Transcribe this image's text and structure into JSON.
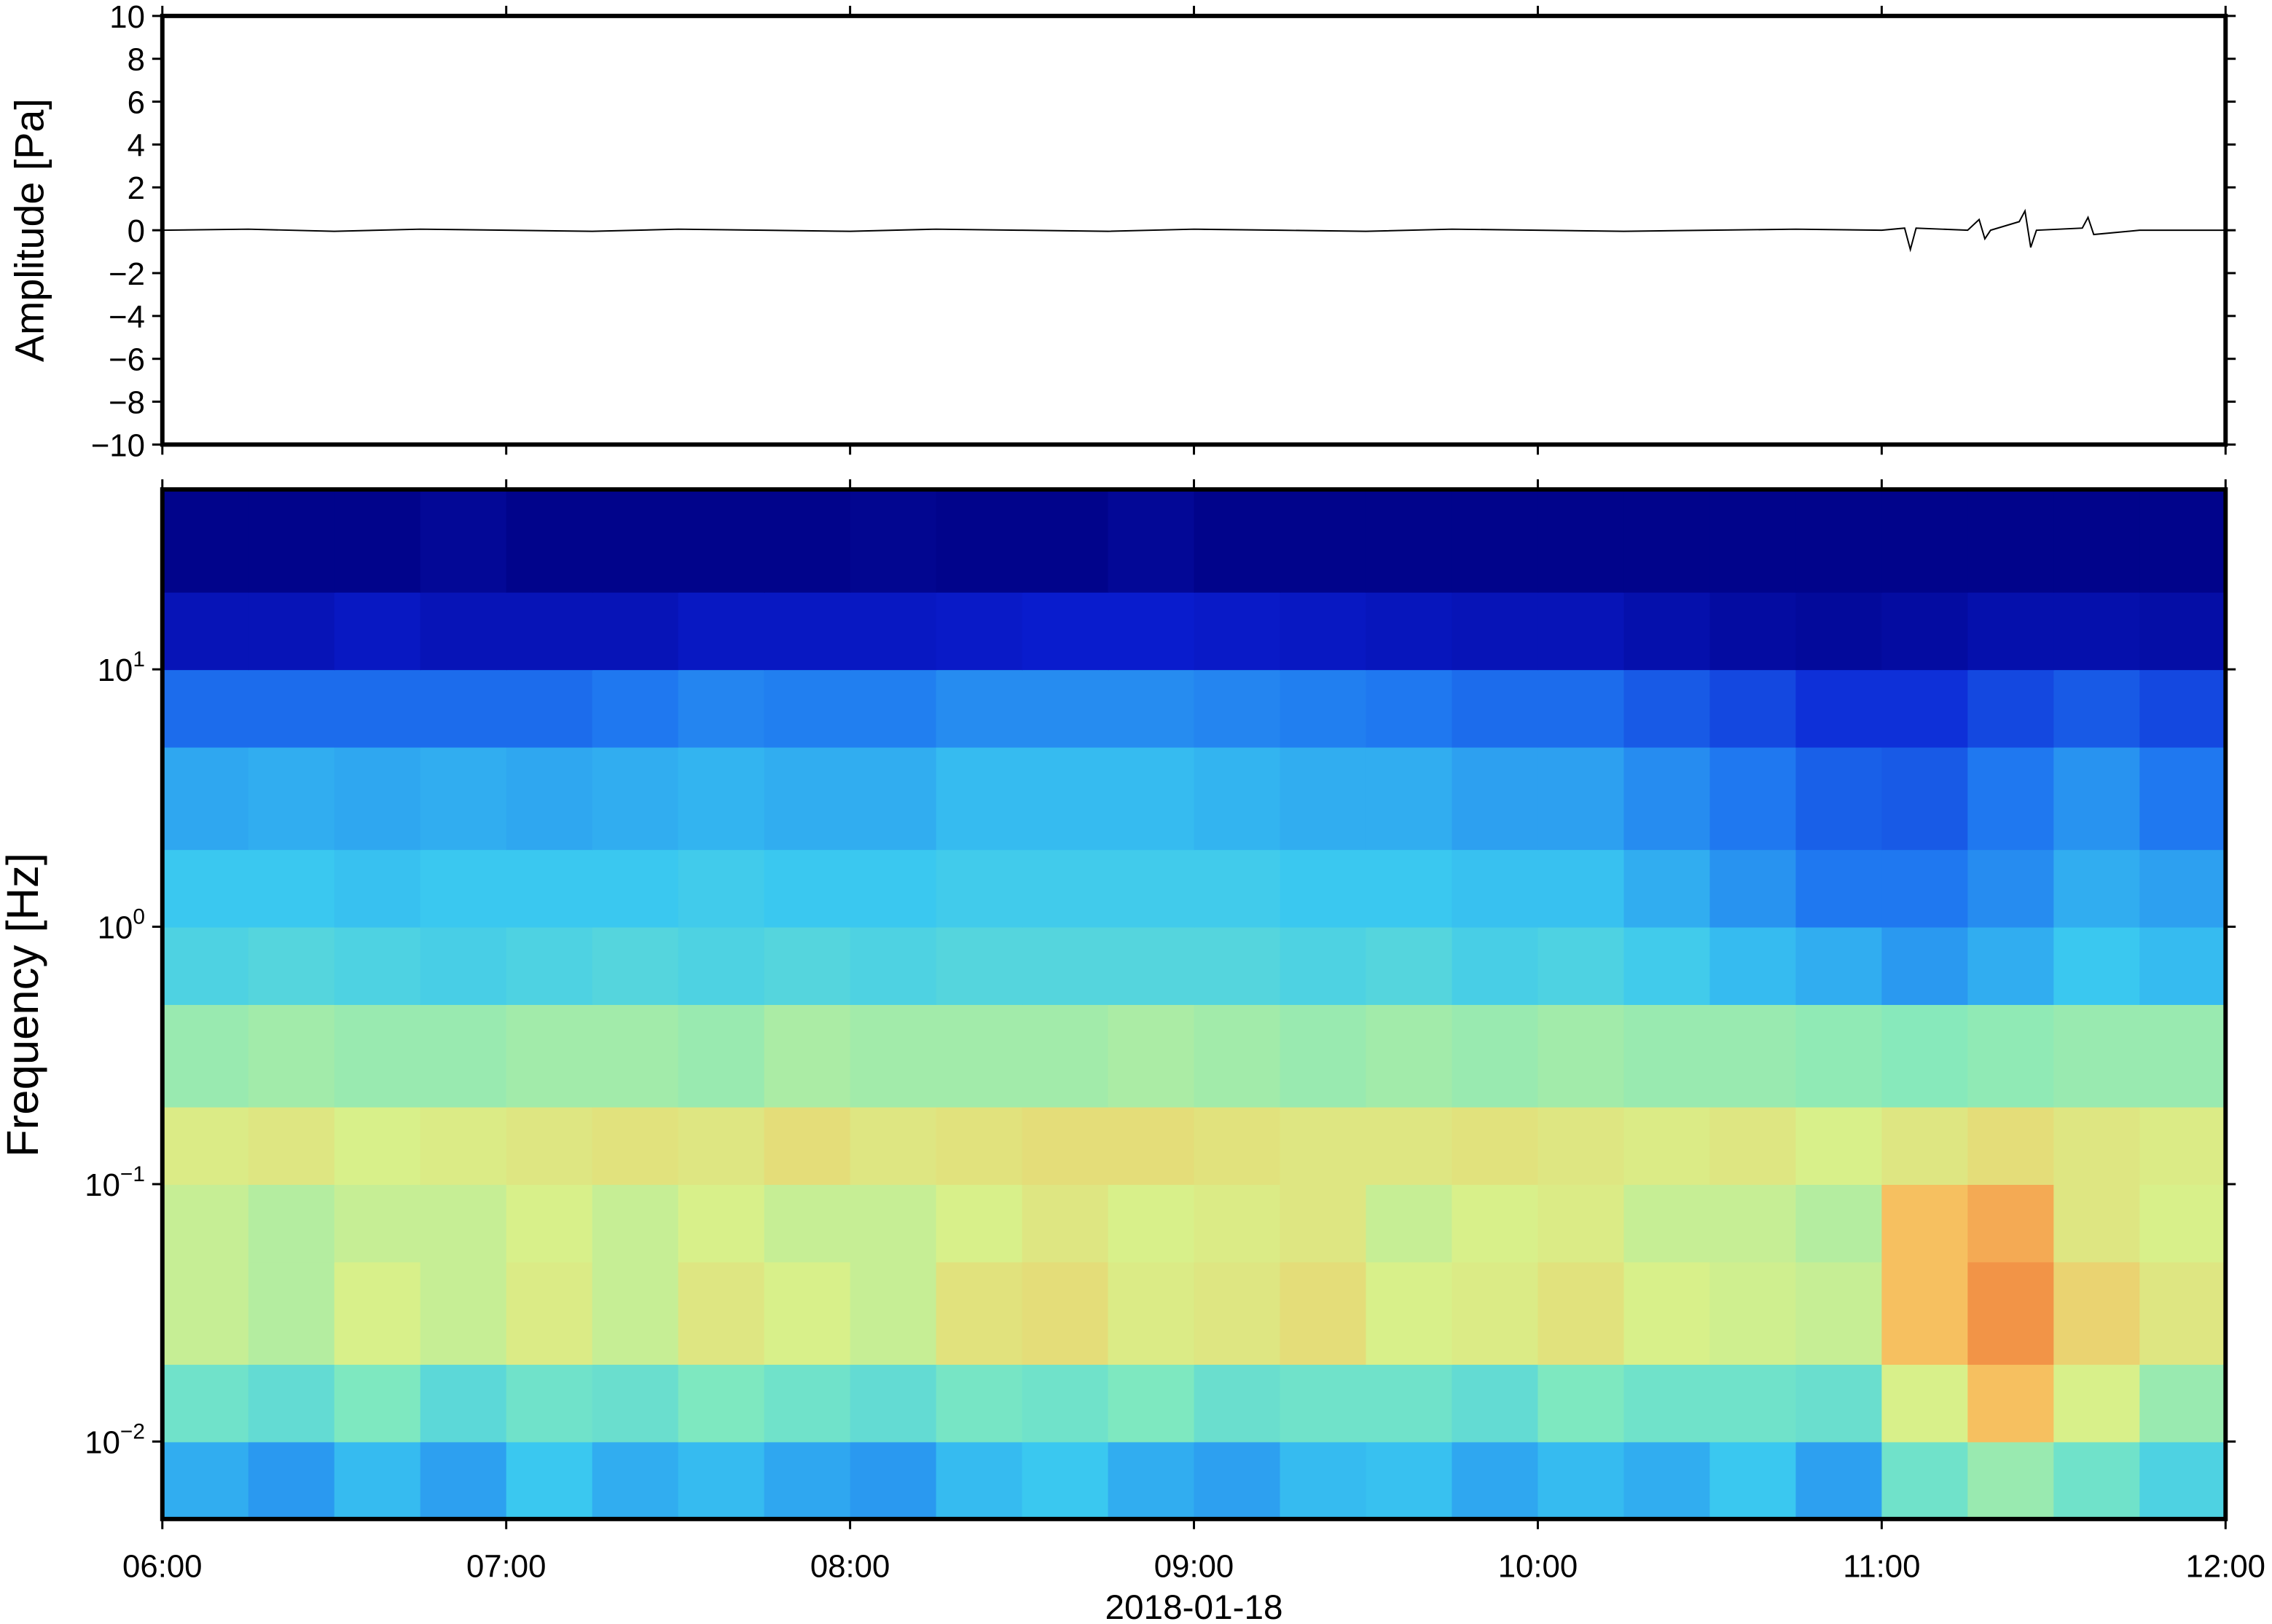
{
  "chart_data": [
    {
      "type": "line",
      "ylabel": "Amplitude [Pa]",
      "color": "#000000",
      "xlim": [
        360,
        720
      ],
      "xticks": [
        {
          "value": 360,
          "label": "06:00"
        },
        {
          "value": 420,
          "label": "07:00"
        },
        {
          "value": 480,
          "label": "08:00"
        },
        {
          "value": 540,
          "label": "09:00"
        },
        {
          "value": 600,
          "label": "10:00"
        },
        {
          "value": 660,
          "label": "11:00"
        },
        {
          "value": 720,
          "label": "12:00"
        }
      ],
      "ylim": [
        -10,
        10
      ],
      "yticks": [
        {
          "value": -10,
          "label": "−10"
        },
        {
          "value": -8,
          "label": "−8"
        },
        {
          "value": -6,
          "label": "−6"
        },
        {
          "value": -4,
          "label": "−4"
        },
        {
          "value": -2,
          "label": "−2"
        },
        0,
        2,
        4,
        6,
        8,
        10
      ],
      "x": [
        360,
        375,
        390,
        405,
        420,
        435,
        450,
        465,
        480,
        495,
        510,
        525,
        540,
        555,
        570,
        585,
        600,
        615,
        630,
        645,
        660,
        664,
        665,
        666,
        675,
        677,
        678,
        679,
        684,
        685,
        686,
        687,
        695,
        696,
        697,
        705,
        720
      ],
      "values": [
        0,
        0.05,
        -0.05,
        0.05,
        0,
        -0.05,
        0.05,
        0,
        -0.05,
        0.05,
        0,
        -0.05,
        0.05,
        0,
        -0.05,
        0.05,
        0,
        -0.05,
        0,
        0.05,
        0,
        0.1,
        -0.9,
        0.1,
        0,
        0.5,
        -0.4,
        0,
        0.4,
        0.9,
        -0.8,
        0,
        0.1,
        0.6,
        -0.2,
        0,
        0
      ]
    },
    {
      "type": "heatmap",
      "ylabel": "Frequency [Hz]",
      "xlabel": "2018-01-18",
      "log_y": true,
      "xlim": [
        360,
        720
      ],
      "xticks": [
        {
          "value": 360,
          "label": "06:00"
        },
        {
          "value": 420,
          "label": "07:00"
        },
        {
          "value": 480,
          "label": "08:00"
        },
        {
          "value": 540,
          "label": "09:00"
        },
        {
          "value": 600,
          "label": "10:00"
        },
        {
          "value": 660,
          "label": "11:00"
        },
        {
          "value": 720,
          "label": "12:00"
        }
      ],
      "ylim": [
        0.005,
        50
      ],
      "yticks": [
        {
          "value": 0.01,
          "label": "10",
          "exponent": "−2"
        },
        {
          "value": 0.1,
          "label": "10",
          "exponent": "−1"
        },
        {
          "value": 1,
          "label": "10",
          "exponent": "0"
        },
        {
          "value": 10,
          "label": "10",
          "exponent": "1"
        }
      ],
      "x_edges": [
        360,
        375,
        390,
        405,
        420,
        435,
        450,
        465,
        480,
        495,
        510,
        525,
        540,
        555,
        570,
        585,
        600,
        615,
        630,
        645,
        660,
        675,
        690,
        705,
        720
      ],
      "y_edges": [
        0.005,
        0.01,
        0.02,
        0.05,
        0.1,
        0.2,
        0.5,
        1,
        2,
        5,
        10,
        20,
        50
      ],
      "colormap": [
        "#000080",
        "#0a1ed2",
        "#1f78f0",
        "#3ac8f0",
        "#7ee8c0",
        "#d8f08a",
        "#f6c060",
        "#f07838",
        "#c02010"
      ],
      "colormap_stops": [
        0,
        0.15,
        0.3,
        0.42,
        0.52,
        0.62,
        0.72,
        0.85,
        1
      ],
      "values": [
        [
          0.38,
          0.35,
          0.4,
          0.36,
          0.42,
          0.38,
          0.4,
          0.37,
          0.35,
          0.4,
          0.42,
          0.38,
          0.36,
          0.4,
          0.41,
          0.37,
          0.4,
          0.38,
          0.42,
          0.36,
          0.5,
          0.55,
          0.5,
          0.45
        ],
        [
          0.5,
          0.48,
          0.52,
          0.47,
          0.5,
          0.49,
          0.52,
          0.5,
          0.48,
          0.51,
          0.5,
          0.52,
          0.49,
          0.5,
          0.5,
          0.48,
          0.52,
          0.5,
          0.5,
          0.49,
          0.62,
          0.72,
          0.62,
          0.55
        ],
        [
          0.6,
          0.58,
          0.62,
          0.6,
          0.63,
          0.6,
          0.64,
          0.62,
          0.6,
          0.65,
          0.66,
          0.63,
          0.64,
          0.66,
          0.62,
          0.63,
          0.65,
          0.62,
          0.61,
          0.6,
          0.72,
          0.8,
          0.68,
          0.64
        ],
        [
          0.6,
          0.58,
          0.6,
          0.6,
          0.62,
          0.6,
          0.62,
          0.6,
          0.6,
          0.62,
          0.64,
          0.62,
          0.63,
          0.64,
          0.6,
          0.62,
          0.63,
          0.6,
          0.6,
          0.58,
          0.72,
          0.76,
          0.64,
          0.62
        ],
        [
          0.63,
          0.64,
          0.62,
          0.63,
          0.64,
          0.65,
          0.64,
          0.66,
          0.64,
          0.65,
          0.66,
          0.66,
          0.65,
          0.64,
          0.64,
          0.65,
          0.64,
          0.63,
          0.64,
          0.62,
          0.64,
          0.66,
          0.64,
          0.63
        ],
        [
          0.55,
          0.56,
          0.55,
          0.55,
          0.56,
          0.56,
          0.55,
          0.57,
          0.56,
          0.56,
          0.56,
          0.57,
          0.56,
          0.55,
          0.56,
          0.55,
          0.56,
          0.55,
          0.55,
          0.54,
          0.53,
          0.54,
          0.55,
          0.55
        ],
        [
          0.45,
          0.46,
          0.45,
          0.44,
          0.45,
          0.46,
          0.45,
          0.46,
          0.45,
          0.46,
          0.46,
          0.46,
          0.46,
          0.45,
          0.46,
          0.44,
          0.45,
          0.43,
          0.4,
          0.38,
          0.35,
          0.38,
          0.42,
          0.4
        ],
        [
          0.42,
          0.42,
          0.41,
          0.42,
          0.42,
          0.42,
          0.43,
          0.42,
          0.42,
          0.43,
          0.43,
          0.43,
          0.43,
          0.42,
          0.42,
          0.41,
          0.41,
          0.38,
          0.34,
          0.3,
          0.3,
          0.33,
          0.38,
          0.36
        ],
        [
          0.37,
          0.38,
          0.37,
          0.38,
          0.37,
          0.38,
          0.39,
          0.38,
          0.38,
          0.4,
          0.4,
          0.4,
          0.39,
          0.38,
          0.38,
          0.36,
          0.36,
          0.33,
          0.3,
          0.26,
          0.25,
          0.3,
          0.34,
          0.3
        ],
        [
          0.28,
          0.28,
          0.28,
          0.28,
          0.28,
          0.3,
          0.32,
          0.31,
          0.31,
          0.33,
          0.33,
          0.33,
          0.32,
          0.31,
          0.3,
          0.28,
          0.28,
          0.25,
          0.22,
          0.18,
          0.18,
          0.22,
          0.25,
          0.22
        ],
        [
          0.1,
          0.1,
          0.12,
          0.1,
          0.1,
          0.1,
          0.12,
          0.12,
          0.12,
          0.13,
          0.14,
          0.14,
          0.13,
          0.12,
          0.11,
          0.1,
          0.1,
          0.08,
          0.06,
          0.05,
          0.06,
          0.08,
          0.08,
          0.07
        ],
        [
          0.02,
          0.02,
          0.02,
          0.04,
          0.02,
          0.02,
          0.02,
          0.02,
          0.03,
          0.02,
          0.02,
          0.04,
          0.02,
          0.02,
          0.02,
          0.02,
          0.02,
          0.02,
          0.02,
          0.02,
          0.02,
          0.02,
          0.02,
          0.02
        ]
      ]
    }
  ]
}
